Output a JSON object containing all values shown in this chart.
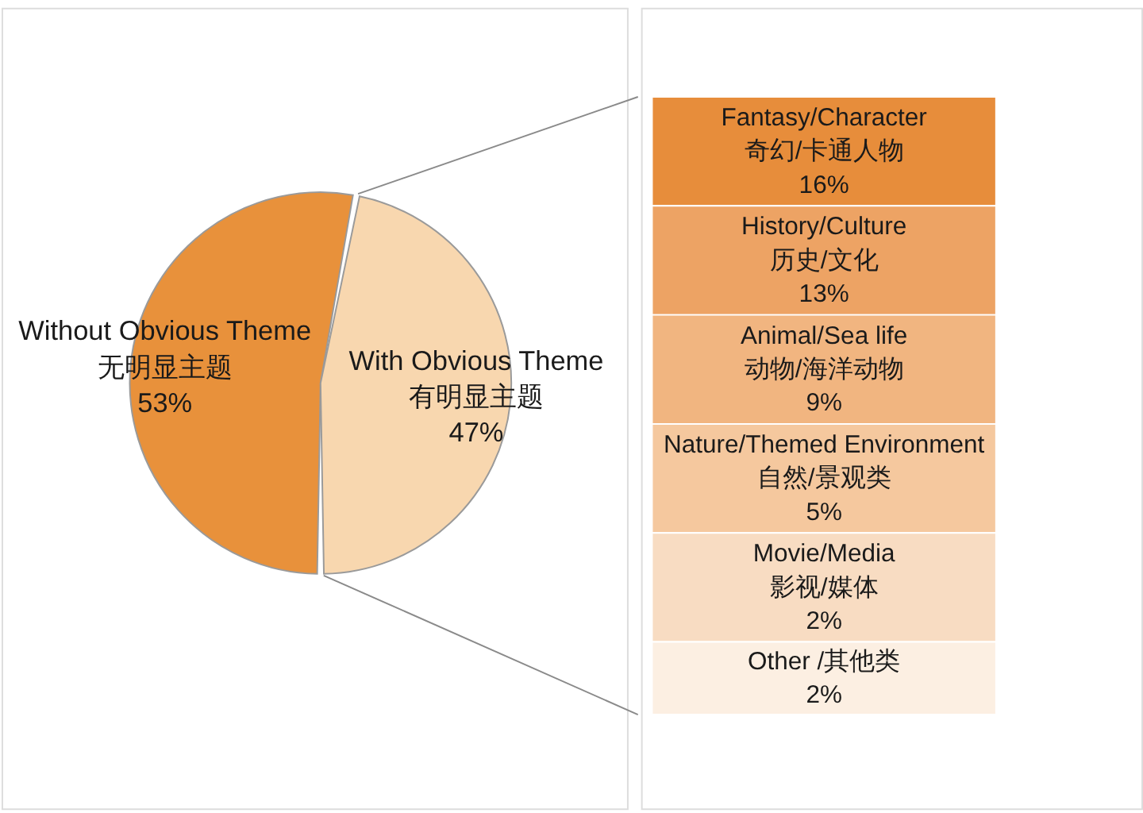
{
  "chart_data": [
    {
      "type": "pie",
      "categories": [
        "Without Obvious Theme\n无明显主题",
        "With Obvious Theme\n有明显主题"
      ],
      "values": [
        53,
        47
      ],
      "colors": [
        "#e8913b",
        "#f8d7af"
      ],
      "value_labels": [
        "53%",
        "47%"
      ]
    },
    {
      "type": "other",
      "categories": [
        "Fantasy/Character\n奇幻/卡通人物",
        "History/Culture\n历史/文化",
        "Animal/Sea life\n动物/海洋动物",
        "Nature/Themed Environment\n自然/景观类",
        "Movie/Media\n影视/媒体",
        "Other /其他类"
      ],
      "values": [
        16,
        13,
        9,
        5,
        2,
        2
      ],
      "colors": [
        "#e78d3b",
        "#eda364",
        "#f1b580",
        "#f5c89e",
        "#f8dcc2",
        "#fcefe2"
      ],
      "value_labels": [
        "16%",
        "13%",
        "9%",
        "5%",
        "2%",
        "2%"
      ]
    }
  ]
}
